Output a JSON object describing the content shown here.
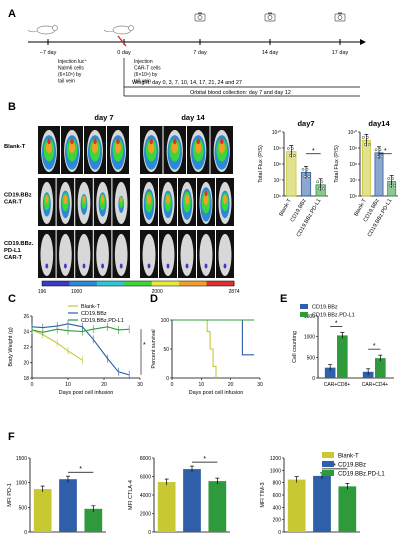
{
  "colors": {
    "blank": "#c8c832",
    "bbz": "#2e5fa8",
    "pdl1": "#2e9a3c",
    "axis": "#000000",
    "cbar": [
      "#3a3ac8",
      "#2a8ad8",
      "#28c8d8",
      "#38d838",
      "#e8e838",
      "#f0a028",
      "#e03030"
    ]
  },
  "panelA": {
    "letter": "A",
    "ticks": [
      {
        "label": "−7 day",
        "desc": "Injection luc⁺ Nalm6 cells (6×10⁵) by tail vein",
        "icon": "mouse-icon"
      },
      {
        "label": "0 day",
        "desc": "Injection CAR-T cells (6×10⁶) by tail vein",
        "icon": "mouse-syringe-icon"
      },
      {
        "label": "7 day",
        "desc": "",
        "icon": "camera-icon"
      },
      {
        "label": "14 day",
        "desc": "",
        "icon": "camera-icon"
      },
      {
        "label": "17 day",
        "desc": "",
        "icon": "camera-icon"
      }
    ],
    "weight": "Weight:  day 0, 3, 7, 10, 14, 17, 21, 24 and 27",
    "orbital": "Orbital blood collection: day 7 and day 12"
  },
  "panelB": {
    "letter": "B",
    "day7": "day 7",
    "day14": "day 14",
    "rows": [
      "Blank-T",
      "CD19.BBz CAR-T",
      "CD19.BBz. PD-L1 CAR-T"
    ],
    "cbar_labels": [
      "196",
      "1000",
      "2000",
      "2874"
    ]
  },
  "chart_data": [
    {
      "id": "B-day7",
      "type": "bar",
      "title": "day7",
      "ylabel": "Total Flux (P/S)",
      "ylog": true,
      "ylim": [
        1000000,
        10000000000
      ],
      "yticks": [
        "10⁶",
        "10⁷",
        "10⁸",
        "10⁹",
        "10¹⁰"
      ],
      "categories": [
        "Blank-T",
        "CD19.BBz",
        "CD19.BBz.PD-L1"
      ],
      "values": [
        600000000,
        30000000,
        5000000
      ],
      "sig": "*"
    },
    {
      "id": "B-day14",
      "type": "bar",
      "title": "day14",
      "ylabel": "Total Flux (P/S)",
      "ylog": true,
      "ylim": [
        1000000,
        10000000000
      ],
      "yticks": [
        "10⁶",
        "10⁷",
        "10⁸",
        "10⁹",
        "10¹⁰"
      ],
      "categories": [
        "Blank-T",
        "CD19.BBz",
        "CD19.BBz.PD-L1"
      ],
      "values": [
        3000000000,
        500000000,
        8000000
      ],
      "sig": "*"
    },
    {
      "id": "C",
      "type": "line",
      "letter": "C",
      "xlabel": "Days post cell infusion",
      "ylabel": "Body Weight (g)",
      "xlim": [
        0,
        30
      ],
      "ylim": [
        18,
        26
      ],
      "xticks": [
        "0",
        "10",
        "20",
        "30"
      ],
      "yticks": [
        "18",
        "20",
        "22",
        "24",
        "26"
      ],
      "series": [
        {
          "name": "Blank-T",
          "x": [
            0,
            3,
            7,
            10,
            14
          ],
          "y": [
            24.2,
            23.6,
            22.5,
            21.5,
            20.3
          ]
        },
        {
          "name": "CD19.BBz",
          "x": [
            0,
            3,
            7,
            10,
            14,
            17,
            21,
            24,
            27
          ],
          "y": [
            24.6,
            24.5,
            24.7,
            25.0,
            24.6,
            23.0,
            20.5,
            18.8,
            18.4
          ]
        },
        {
          "name": "CD19.BBz.PD-L1",
          "x": [
            0,
            3,
            7,
            10,
            14,
            17,
            21,
            24,
            27
          ],
          "y": [
            24.2,
            23.9,
            24.3,
            24.1,
            24.0,
            24.3,
            24.6,
            24.2,
            24.3
          ]
        }
      ],
      "sig": "*"
    },
    {
      "id": "D",
      "type": "line",
      "letter": "D",
      "xlabel": "Days post cell infusion",
      "ylabel": "Percent survival",
      "xlim": [
        0,
        30
      ],
      "ylim": [
        0,
        100
      ],
      "xticks": [
        "0",
        "10",
        "20",
        "30"
      ],
      "yticks": [
        "0",
        "50",
        "100"
      ],
      "series": [
        {
          "name": "Blank-T",
          "x": [
            0,
            12,
            12,
            13,
            13,
            14,
            14,
            15,
            15
          ],
          "y": [
            100,
            100,
            80,
            80,
            50,
            50,
            20,
            20,
            0
          ]
        },
        {
          "name": "CD19.BBz",
          "x": [
            0,
            24,
            24,
            28
          ],
          "y": [
            100,
            100,
            40,
            40
          ]
        },
        {
          "name": "CD19.BBz.PD-L1",
          "x": [
            0,
            28
          ],
          "y": [
            100,
            100
          ]
        }
      ]
    },
    {
      "id": "E",
      "type": "bar",
      "letter": "E",
      "ylabel": "Cell counting",
      "ylim": [
        0,
        1500
      ],
      "yticks": [
        "0",
        "500",
        "1000",
        "1500"
      ],
      "categories": [
        "CAR+CD8+",
        "CAR+CD4+"
      ],
      "series": [
        {
          "name": "CD19.BBz",
          "values": [
            250,
            150
          ]
        },
        {
          "name": "CD19.BBz.PD-L1",
          "values": [
            1030,
            480
          ]
        }
      ],
      "sig": "*"
    },
    {
      "id": "F1",
      "type": "bar",
      "letter": "F",
      "ylabel": "MFI PD-1",
      "ylim": [
        0,
        1500
      ],
      "yticks": [
        "0",
        "500",
        "1000",
        "1500"
      ],
      "categories": [
        "Blank-T",
        "CD19.BBz",
        "CD19.BBz.PD-L1"
      ],
      "values": [
        870,
        1070,
        470
      ],
      "sig": "*"
    },
    {
      "id": "F2",
      "type": "bar",
      "ylabel": "MFI CTLA-4",
      "ylim": [
        0,
        8000
      ],
      "yticks": [
        "0",
        "2000",
        "4000",
        "6000",
        "8000"
      ],
      "categories": [
        "Blank-T",
        "CD19.BBz",
        "CD19.BBz.PD-L1"
      ],
      "values": [
        5400,
        6800,
        5500
      ],
      "sig": "*"
    },
    {
      "id": "F3",
      "type": "bar",
      "ylabel": "MFI TIM-3",
      "ylim": [
        0,
        1200
      ],
      "yticks": [
        "0",
        "200",
        "400",
        "600",
        "800",
        "1000",
        "1200"
      ],
      "categories": [
        "Blank-T",
        "CD19.BBz",
        "CD19.BBz.PD-L1"
      ],
      "values": [
        850,
        910,
        740
      ],
      "sig": "*"
    }
  ],
  "legends": {
    "C": [
      "Blank-T",
      "CD19.BBz",
      "CD19.BBz.PD-L1"
    ],
    "E": [
      "CD19.BBz",
      "CD19.BBz.PD-L1"
    ],
    "F": [
      "Blank-T",
      "CD19.BBz",
      "CD19.BBz.PD-L1"
    ]
  }
}
